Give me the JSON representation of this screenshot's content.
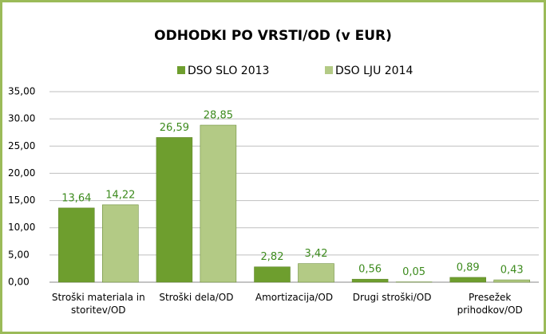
{
  "chart_data": {
    "type": "bar",
    "title": "ODHODKI PO VRSTI/OD (v EUR)",
    "categories": [
      "Stroški materiala in storitev/OD",
      "Stroški dela/OD",
      "Amortizacija/OD",
      "Drugi stroški/OD",
      "Presežek prihodkov/OD"
    ],
    "series": [
      {
        "name": "DSO SLO 2013",
        "color": "#6e9e2e",
        "values": [
          13.64,
          26.59,
          2.82,
          0.56,
          0.89
        ],
        "value_labels": [
          "13,64",
          "26,59",
          "2,82",
          "0,56",
          "0,89"
        ]
      },
      {
        "name": "DSO LJU 2014",
        "color": "#b3ca85",
        "values": [
          14.22,
          28.85,
          3.42,
          0.05,
          0.43
        ],
        "value_labels": [
          "14,22",
          "28,85",
          "3,42",
          "0,05",
          "0,43"
        ]
      }
    ],
    "ylim": [
      0,
      35
    ],
    "yticks": [
      {
        "value": 0,
        "label": "0,00"
      },
      {
        "value": 5,
        "label": "5,00"
      },
      {
        "value": 10,
        "label": "10,00"
      },
      {
        "value": 15,
        "label": "15,00"
      },
      {
        "value": 20,
        "label": "20,00"
      },
      {
        "value": 25,
        "label": "25,00"
      },
      {
        "value": 30,
        "label": "30.00"
      },
      {
        "value": 35,
        "label": "35,00"
      }
    ],
    "grid": true,
    "legend": "top"
  }
}
